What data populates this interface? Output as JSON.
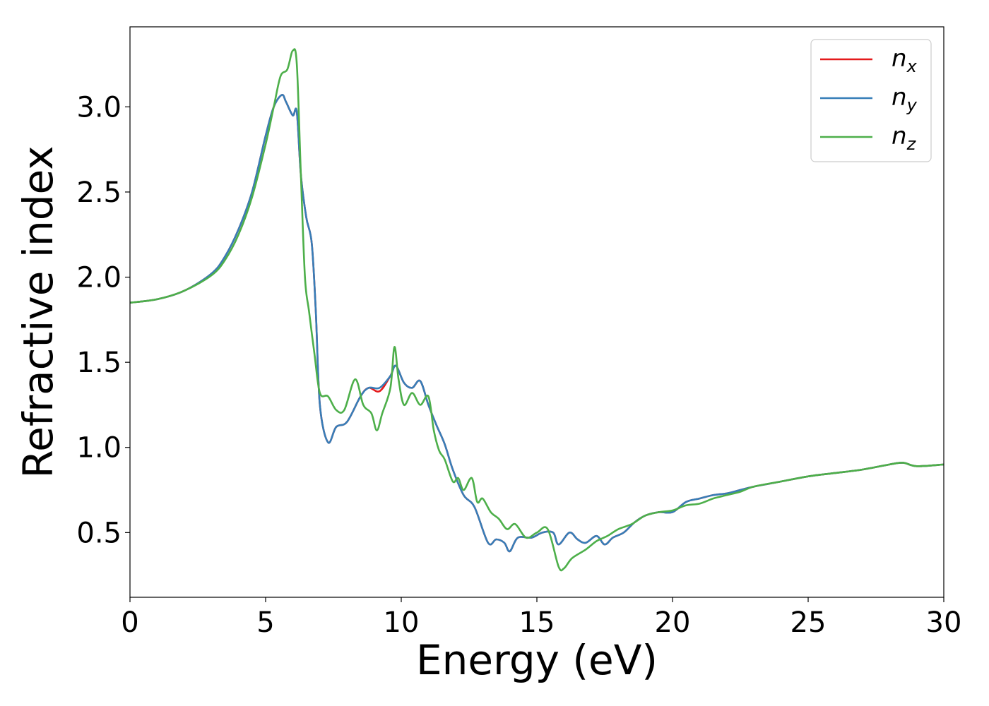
{
  "chart_data": {
    "type": "line",
    "xlabel": "Energy (eV)",
    "ylabel": "Refractive index",
    "xlim": [
      0,
      30
    ],
    "ylim": [
      0.12,
      3.47
    ],
    "xticks": [
      0,
      5,
      10,
      15,
      20,
      25,
      30
    ],
    "xtick_labels": [
      "0",
      "5",
      "10",
      "15",
      "20",
      "25",
      "30"
    ],
    "yticks": [
      0.5,
      1.0,
      1.5,
      2.0,
      2.5,
      3.0
    ],
    "ytick_labels": [
      "0.5",
      "1.0",
      "1.5",
      "2.0",
      "2.5",
      "3.0"
    ],
    "grid": false,
    "legend_position": "top-right",
    "series": [
      {
        "name": "n_x",
        "base": "n",
        "sub": "x",
        "color": "#e41a1c",
        "x": [
          0,
          1,
          2,
          3,
          3.5,
          4,
          4.5,
          5,
          5.3,
          5.6,
          5.75,
          6.0,
          6.15,
          6.3,
          6.5,
          6.7,
          6.85,
          7.0,
          7.3,
          7.6,
          8.0,
          8.5,
          8.8,
          9.2,
          9.6,
          9.8,
          10.1,
          10.4,
          10.7,
          11.0,
          11.3,
          11.6,
          11.9,
          12.3,
          12.7,
          13.2,
          13.5,
          13.8,
          14.0,
          14.3,
          14.8,
          15.2,
          15.6,
          15.8,
          16.2,
          16.5,
          16.8,
          17.2,
          17.5,
          17.8,
          18.2,
          18.6,
          19.0,
          19.5,
          20.0,
          20.5,
          21.0,
          21.5,
          22.0,
          22.5,
          23.0,
          24.0,
          25.0,
          26.0,
          27.0,
          28.0,
          28.5,
          29.0,
          30.0
        ],
        "y": [
          1.85,
          1.87,
          1.92,
          2.02,
          2.12,
          2.28,
          2.5,
          2.83,
          3.0,
          3.07,
          3.03,
          2.95,
          2.97,
          2.6,
          2.35,
          2.2,
          1.8,
          1.25,
          1.03,
          1.12,
          1.15,
          1.3,
          1.35,
          1.33,
          1.42,
          1.48,
          1.38,
          1.35,
          1.39,
          1.25,
          1.13,
          1.02,
          0.87,
          0.72,
          0.65,
          0.44,
          0.46,
          0.44,
          0.39,
          0.47,
          0.47,
          0.5,
          0.5,
          0.43,
          0.5,
          0.46,
          0.44,
          0.48,
          0.43,
          0.47,
          0.5,
          0.56,
          0.6,
          0.62,
          0.62,
          0.68,
          0.7,
          0.72,
          0.73,
          0.75,
          0.77,
          0.8,
          0.83,
          0.85,
          0.87,
          0.9,
          0.91,
          0.89,
          0.9
        ]
      },
      {
        "name": "n_y",
        "base": "n",
        "sub": "y",
        "color": "#377eb8",
        "x": [
          0,
          1,
          2,
          3,
          3.5,
          4,
          4.5,
          5,
          5.3,
          5.6,
          5.75,
          6.0,
          6.15,
          6.3,
          6.5,
          6.7,
          6.85,
          7.0,
          7.3,
          7.6,
          8.0,
          8.5,
          8.8,
          9.2,
          9.6,
          9.8,
          10.1,
          10.4,
          10.7,
          11.0,
          11.3,
          11.6,
          11.9,
          12.3,
          12.7,
          13.2,
          13.5,
          13.8,
          14.0,
          14.3,
          14.8,
          15.2,
          15.6,
          15.8,
          16.2,
          16.5,
          16.8,
          17.2,
          17.5,
          17.8,
          18.2,
          18.6,
          19.0,
          19.5,
          20.0,
          20.5,
          21.0,
          21.5,
          22.0,
          22.5,
          23.0,
          24.0,
          25.0,
          26.0,
          27.0,
          28.0,
          28.5,
          29.0,
          30.0
        ],
        "y": [
          1.85,
          1.87,
          1.92,
          2.02,
          2.12,
          2.28,
          2.5,
          2.83,
          3.0,
          3.07,
          3.03,
          2.95,
          2.97,
          2.6,
          2.35,
          2.2,
          1.8,
          1.25,
          1.03,
          1.12,
          1.15,
          1.3,
          1.35,
          1.35,
          1.42,
          1.48,
          1.38,
          1.35,
          1.39,
          1.25,
          1.13,
          1.02,
          0.87,
          0.72,
          0.65,
          0.44,
          0.46,
          0.44,
          0.39,
          0.47,
          0.47,
          0.5,
          0.5,
          0.43,
          0.5,
          0.46,
          0.44,
          0.48,
          0.43,
          0.47,
          0.5,
          0.56,
          0.6,
          0.62,
          0.62,
          0.68,
          0.7,
          0.72,
          0.73,
          0.75,
          0.77,
          0.8,
          0.83,
          0.85,
          0.87,
          0.9,
          0.91,
          0.89,
          0.9
        ]
      },
      {
        "name": "n_z",
        "base": "n",
        "sub": "z",
        "color": "#4daf4a",
        "x": [
          0,
          1,
          2,
          3,
          3.5,
          4,
          4.5,
          5,
          5.3,
          5.55,
          5.8,
          6.0,
          6.15,
          6.3,
          6.45,
          6.6,
          6.8,
          7.0,
          7.3,
          7.6,
          7.9,
          8.3,
          8.6,
          8.9,
          9.1,
          9.3,
          9.6,
          9.75,
          9.9,
          10.1,
          10.4,
          10.7,
          11.0,
          11.2,
          11.4,
          11.6,
          11.9,
          12.1,
          12.3,
          12.6,
          12.8,
          13.0,
          13.3,
          13.6,
          13.9,
          14.2,
          14.6,
          15.0,
          15.4,
          15.8,
          16.0,
          16.3,
          16.8,
          17.2,
          17.6,
          18.0,
          18.5,
          19.0,
          19.5,
          20.0,
          20.5,
          21.0,
          21.5,
          22.0,
          22.5,
          23.0,
          24.0,
          25.0,
          26.0,
          27.0,
          28.0,
          28.5,
          29.0,
          30.0
        ],
        "y": [
          1.85,
          1.87,
          1.92,
          2.01,
          2.1,
          2.25,
          2.47,
          2.78,
          3.0,
          3.18,
          3.22,
          3.33,
          3.25,
          2.6,
          2.0,
          1.8,
          1.55,
          1.32,
          1.3,
          1.22,
          1.22,
          1.4,
          1.25,
          1.2,
          1.1,
          1.2,
          1.35,
          1.59,
          1.4,
          1.25,
          1.32,
          1.25,
          1.3,
          1.1,
          0.98,
          0.93,
          0.8,
          0.82,
          0.75,
          0.82,
          0.68,
          0.7,
          0.62,
          0.58,
          0.52,
          0.55,
          0.47,
          0.5,
          0.52,
          0.3,
          0.29,
          0.35,
          0.4,
          0.45,
          0.48,
          0.52,
          0.55,
          0.6,
          0.62,
          0.63,
          0.66,
          0.67,
          0.7,
          0.72,
          0.74,
          0.77,
          0.8,
          0.83,
          0.85,
          0.87,
          0.9,
          0.91,
          0.89,
          0.9
        ]
      }
    ]
  }
}
